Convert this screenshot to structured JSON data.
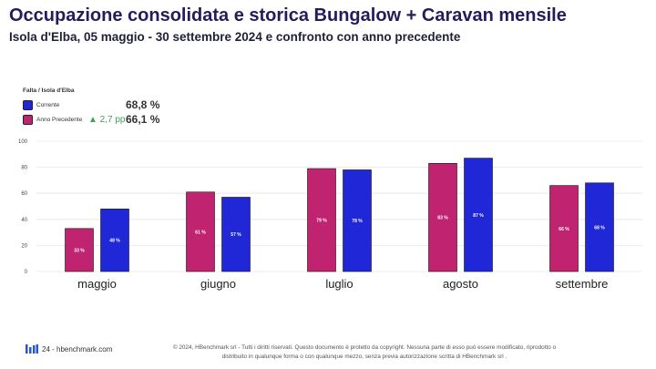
{
  "header": {
    "title": "Occupazione consolidata e storica Bungalow + Caravan mensile",
    "subtitle": "Isola d'Elba, 05 maggio - 30 settembre 2024 e confronto con anno precedente"
  },
  "legend": {
    "title": "Falta / Isola d'Elba",
    "current_label": "Corrente",
    "current_value": "68,8 %",
    "previous_label": "Anno Precedente",
    "delta": "▲ 2,7 pp",
    "previous_value": "66,1 %"
  },
  "chart_data": {
    "type": "bar",
    "categories": [
      "maggio",
      "giugno",
      "luglio",
      "agosto",
      "settembre"
    ],
    "series": [
      {
        "name": "Anno Precedente",
        "color": "#c0236f",
        "values": [
          33,
          61,
          79,
          83,
          66
        ],
        "labels": [
          "33 %",
          "61 %",
          "79 %",
          "83 %",
          "66 %"
        ]
      },
      {
        "name": "Corrente",
        "color": "#1f27d6",
        "values": [
          48,
          57,
          78,
          87,
          68
        ],
        "labels": [
          "48 %",
          "57 %",
          "78 %",
          "87 %",
          "68 %"
        ]
      }
    ],
    "yticks": [
      0,
      20,
      40,
      60,
      80,
      100
    ],
    "ylim": [
      0,
      100
    ],
    "grid": true
  },
  "footer": {
    "page": "24 - hbenchmark.com",
    "copyright_line1": "© 2024, HBenchmark srl - Tutti i diritti riservati. Questo documento è protetto da copyright. Nessuna parte di esso può essere modificato, riprodotto o",
    "copyright_line2": "distribuito in qualunque forma o con qualunque mezzo, senza previa autorizzazione scritta di HBenchmark srl ."
  }
}
